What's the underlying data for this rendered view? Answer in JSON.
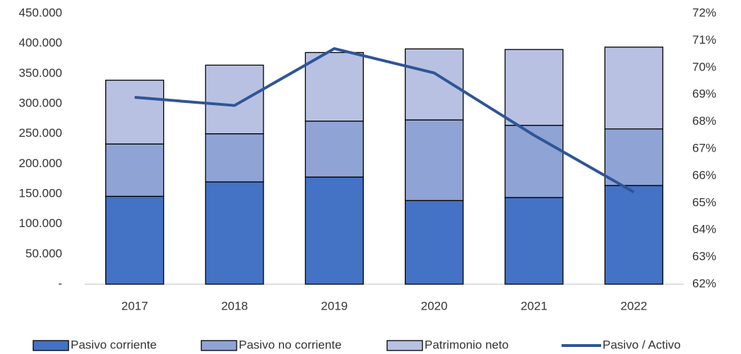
{
  "chart_data": {
    "type": "bar",
    "categories": [
      "2017",
      "2018",
      "2019",
      "2020",
      "2021",
      "2022"
    ],
    "series": [
      {
        "name": "Pasivo corriente",
        "color": "#4472c4",
        "values": [
          146000,
          170000,
          178000,
          139000,
          144000,
          164000
        ]
      },
      {
        "name": "Pasivo no corriente",
        "color": "#8fa3d5",
        "values": [
          87000,
          80000,
          93000,
          134000,
          120000,
          94000
        ]
      },
      {
        "name": "Patrimonio neto",
        "color": "#b8c1e2",
        "values": [
          106000,
          114000,
          114000,
          118000,
          126000,
          136000
        ]
      },
      {
        "name": "Pasivo / Activo",
        "color": "#2f5597",
        "type": "line",
        "axis": "y2",
        "values": [
          68.9,
          68.6,
          70.7,
          69.8,
          67.5,
          65.4
        ]
      }
    ],
    "ylim": [
      0,
      450000
    ],
    "yticks": [
      {
        "value": 0,
        "label": "-"
      },
      {
        "value": 50000,
        "label": "50.000"
      },
      {
        "value": 100000,
        "label": "100.000"
      },
      {
        "value": 150000,
        "label": "150.000"
      },
      {
        "value": 200000,
        "label": "200.000"
      },
      {
        "value": 250000,
        "label": "250.000"
      },
      {
        "value": 300000,
        "label": "300.000"
      },
      {
        "value": 350000,
        "label": "350.000"
      },
      {
        "value": 400000,
        "label": "400.000"
      },
      {
        "value": 450000,
        "label": "450.000"
      }
    ],
    "y2lim": [
      62,
      72
    ],
    "y2ticks": [
      {
        "value": 62,
        "label": "62%"
      },
      {
        "value": 63,
        "label": "63%"
      },
      {
        "value": 64,
        "label": "64%"
      },
      {
        "value": 65,
        "label": "65%"
      },
      {
        "value": 66,
        "label": "66%"
      },
      {
        "value": 67,
        "label": "67%"
      },
      {
        "value": 68,
        "label": "68%"
      },
      {
        "value": 69,
        "label": "69%"
      },
      {
        "value": 70,
        "label": "70%"
      },
      {
        "value": 71,
        "label": "71%"
      },
      {
        "value": 72,
        "label": "72%"
      }
    ],
    "legend": "bottom",
    "grid": false
  }
}
